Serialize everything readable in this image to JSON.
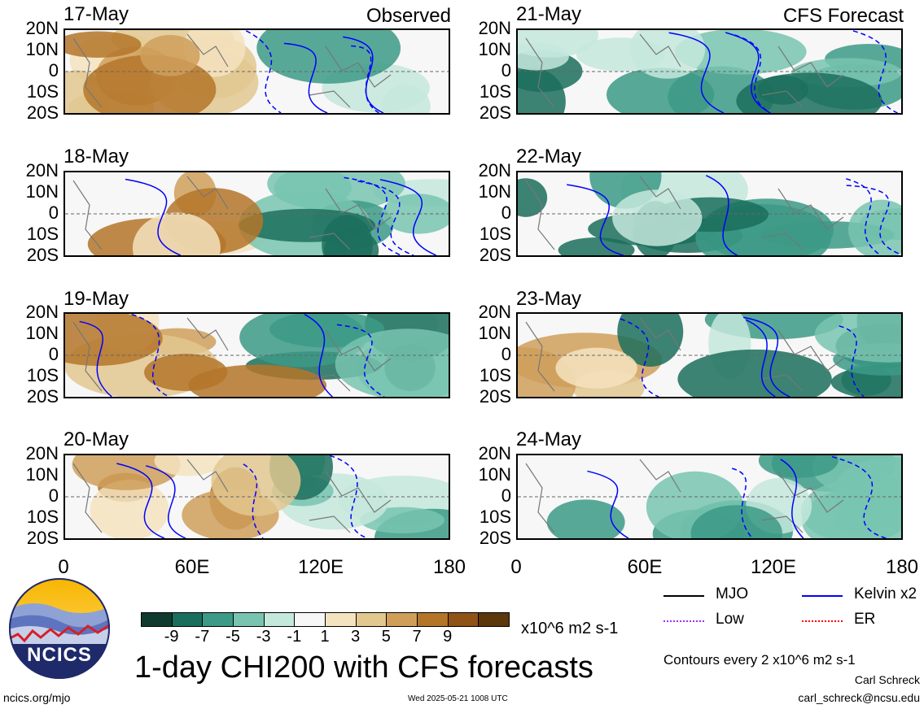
{
  "header": {
    "left_label": "Observed",
    "right_label": "CFS Forecast"
  },
  "observed_panels": [
    {
      "date": "17-May"
    },
    {
      "date": "18-May"
    },
    {
      "date": "19-May"
    },
    {
      "date": "20-May"
    }
  ],
  "forecast_panels": [
    {
      "date": "21-May"
    },
    {
      "date": "22-May"
    },
    {
      "date": "23-May"
    },
    {
      "date": "24-May"
    }
  ],
  "lat_labels": [
    "20N",
    "10N",
    "0",
    "10S",
    "20S"
  ],
  "lon_labels": [
    "0",
    "60E",
    "120E",
    "180"
  ],
  "colorbar": {
    "colors": [
      "#0f3b2e",
      "#1b6e5c",
      "#3c9a86",
      "#78c4b0",
      "#c4e8dc",
      "#f7f7f7",
      "#f4e3bf",
      "#e2c78f",
      "#cf9f5a",
      "#b47529",
      "#8f5317",
      "#5c370c"
    ],
    "ticks": [
      "-9",
      "-7",
      "-5",
      "-3",
      "-1",
      "1",
      "3",
      "5",
      "7",
      "9"
    ],
    "units": "x10^6 m2 s-1"
  },
  "legend": {
    "items": [
      {
        "label": "MJO",
        "color": "#000000"
      },
      {
        "label": "Kelvin x2",
        "color": "#0000ff"
      },
      {
        "label": "Low",
        "color": "#9b30ff"
      },
      {
        "label": "ER",
        "color": "#ff0000"
      }
    ],
    "contour_note": "Contours every 2 x10^6 m2 s-1"
  },
  "footer": {
    "title": "1-day CHI200 with CFS forecasts",
    "url": "ncics.org/mjo",
    "timestamp": "Wed 2025-05-21 1008 UTC",
    "author": "Carl Schreck",
    "email": "carl_schreck@ncsu.edu",
    "logo_text": "NCICS"
  }
}
